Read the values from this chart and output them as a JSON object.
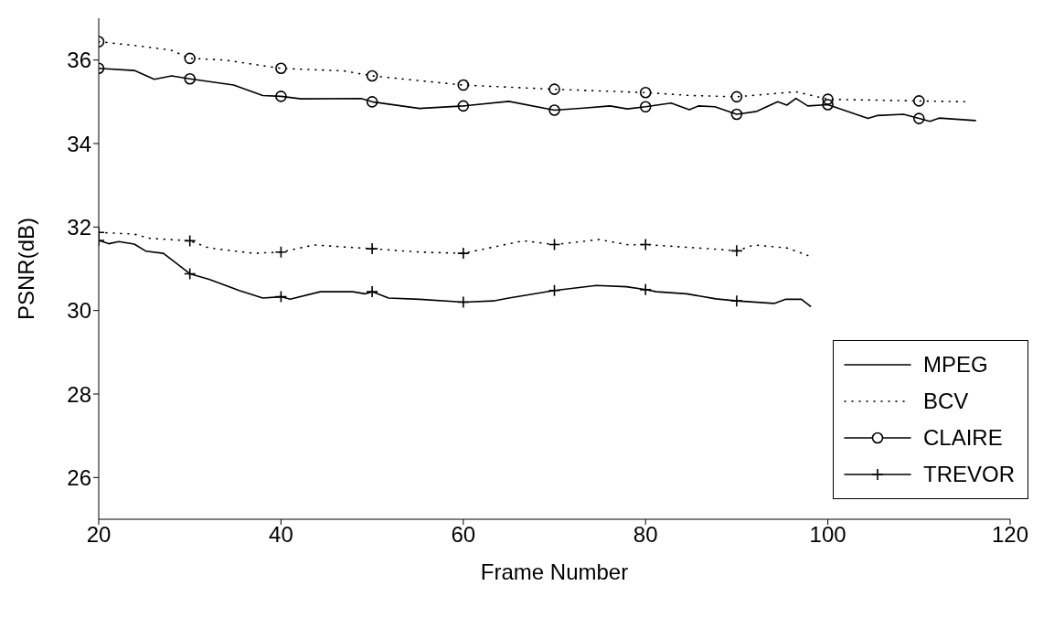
{
  "chart_data": {
    "type": "line",
    "xlabel": "Frame Number",
    "ylabel": "PSNR(dB)",
    "xlim": [
      20,
      120
    ],
    "xticks": [
      20,
      40,
      60,
      80,
      100,
      120
    ],
    "ylim": [
      25,
      37
    ],
    "yticks": [
      26,
      28,
      30,
      32,
      34,
      36
    ],
    "grid": false,
    "legend": "bottom right",
    "annotations": [
      "MPEG",
      "BCV"
    ],
    "series": [
      {
        "line_style": "solid",
        "marker": "none",
        "color": "#000000",
        "x": [
          20,
          23.9,
          26.1,
          28,
          30,
          34.8,
          38,
          40,
          42.2,
          48.8,
          50,
          55.2,
          60,
          65,
          70,
          73.2,
          76.1,
          78,
          80,
          82.8,
          84.8,
          85.8,
          87.6,
          90,
          92.2,
          94.5,
          95.5,
          96.5,
          97.8,
          100,
          104.4,
          105.4,
          108.3,
          110,
          111.2,
          112.2,
          116.2
        ],
        "values": [
          35.8,
          35.75,
          35.54,
          35.62,
          35.55,
          35.4,
          35.15,
          35.13,
          35.07,
          35.08,
          35.0,
          34.84,
          34.9,
          35.01,
          34.8,
          34.85,
          34.9,
          34.83,
          34.88,
          34.97,
          34.81,
          34.9,
          34.88,
          34.7,
          34.77,
          35.0,
          34.92,
          35.08,
          34.9,
          34.93,
          34.6,
          34.67,
          34.7,
          34.6,
          34.53,
          34.61,
          34.55
        ]
      },
      {
        "line_style": "dotted",
        "marker": "none",
        "color": "#000000",
        "x": [
          20,
          23.9,
          27.9,
          30,
          33.8,
          40,
          46.9,
          50,
          60,
          70,
          80,
          85,
          90,
          96.5,
          100,
          110,
          115.2
        ],
        "values": [
          36.44,
          36.35,
          36.24,
          36.04,
          36.0,
          35.8,
          35.74,
          35.62,
          35.4,
          35.3,
          35.22,
          35.15,
          35.12,
          35.24,
          35.06,
          35.02,
          35.0
        ]
      },
      {
        "line_style": "solid",
        "marker": "none",
        "color": "#000000",
        "x": [
          20,
          21.1,
          22.2,
          23.9,
          25.2,
          27.1,
          30,
          32.1,
          35.4,
          38,
          40,
          41,
          44.3,
          47.9,
          49.2,
          50,
          51.8,
          55.2,
          60,
          63.3,
          65,
          70,
          74.6,
          77.9,
          80,
          81.2,
          84.5,
          87.7,
          90,
          94.1,
          95.4,
          97.1,
          98.1
        ],
        "values": [
          31.68,
          31.6,
          31.65,
          31.59,
          31.42,
          31.37,
          30.88,
          30.75,
          30.48,
          30.3,
          30.33,
          30.27,
          30.45,
          30.45,
          30.4,
          30.45,
          30.3,
          30.27,
          30.2,
          30.23,
          30.3,
          30.48,
          30.6,
          30.57,
          30.5,
          30.45,
          30.4,
          30.28,
          30.23,
          30.17,
          30.27,
          30.27,
          30.1
        ]
      },
      {
        "line_style": "dotted",
        "marker": "none",
        "color": "#000000",
        "x": [
          20,
          23.9,
          25.6,
          30,
          32.1,
          37,
          40,
          43.6,
          50,
          55.2,
          60,
          66.6,
          70,
          74.9,
          78.2,
          80,
          87.7,
          90,
          91.9,
          95.5,
          97.8
        ],
        "values": [
          31.87,
          31.83,
          31.73,
          31.67,
          31.5,
          31.37,
          31.4,
          31.57,
          31.48,
          31.4,
          31.37,
          31.67,
          31.58,
          31.7,
          31.57,
          31.58,
          31.47,
          31.43,
          31.57,
          31.5,
          31.32
        ]
      },
      {
        "type": "scatter",
        "name": "CLAIRE",
        "marker": "circle",
        "color": "#000000",
        "x": [
          20,
          30,
          40,
          50,
          60,
          70,
          80,
          90,
          100,
          110,
          20,
          30,
          40,
          50,
          60,
          70,
          80,
          90,
          100,
          110
        ],
        "values": [
          35.8,
          35.55,
          35.13,
          35.0,
          34.9,
          34.8,
          34.88,
          34.7,
          34.93,
          34.6,
          36.44,
          36.04,
          35.8,
          35.62,
          35.4,
          35.3,
          35.22,
          35.12,
          35.06,
          35.02
        ]
      },
      {
        "type": "scatter",
        "name": "TREVOR",
        "marker": "cross",
        "color": "#000000",
        "x": [
          20,
          30,
          40,
          50,
          60,
          70,
          80,
          90,
          20,
          30,
          40,
          50,
          60,
          70,
          80,
          90
        ],
        "values": [
          31.68,
          30.88,
          30.33,
          30.45,
          30.2,
          30.48,
          30.5,
          30.23,
          31.87,
          31.67,
          31.4,
          31.48,
          31.37,
          31.58,
          31.58,
          31.43
        ]
      }
    ]
  }
}
